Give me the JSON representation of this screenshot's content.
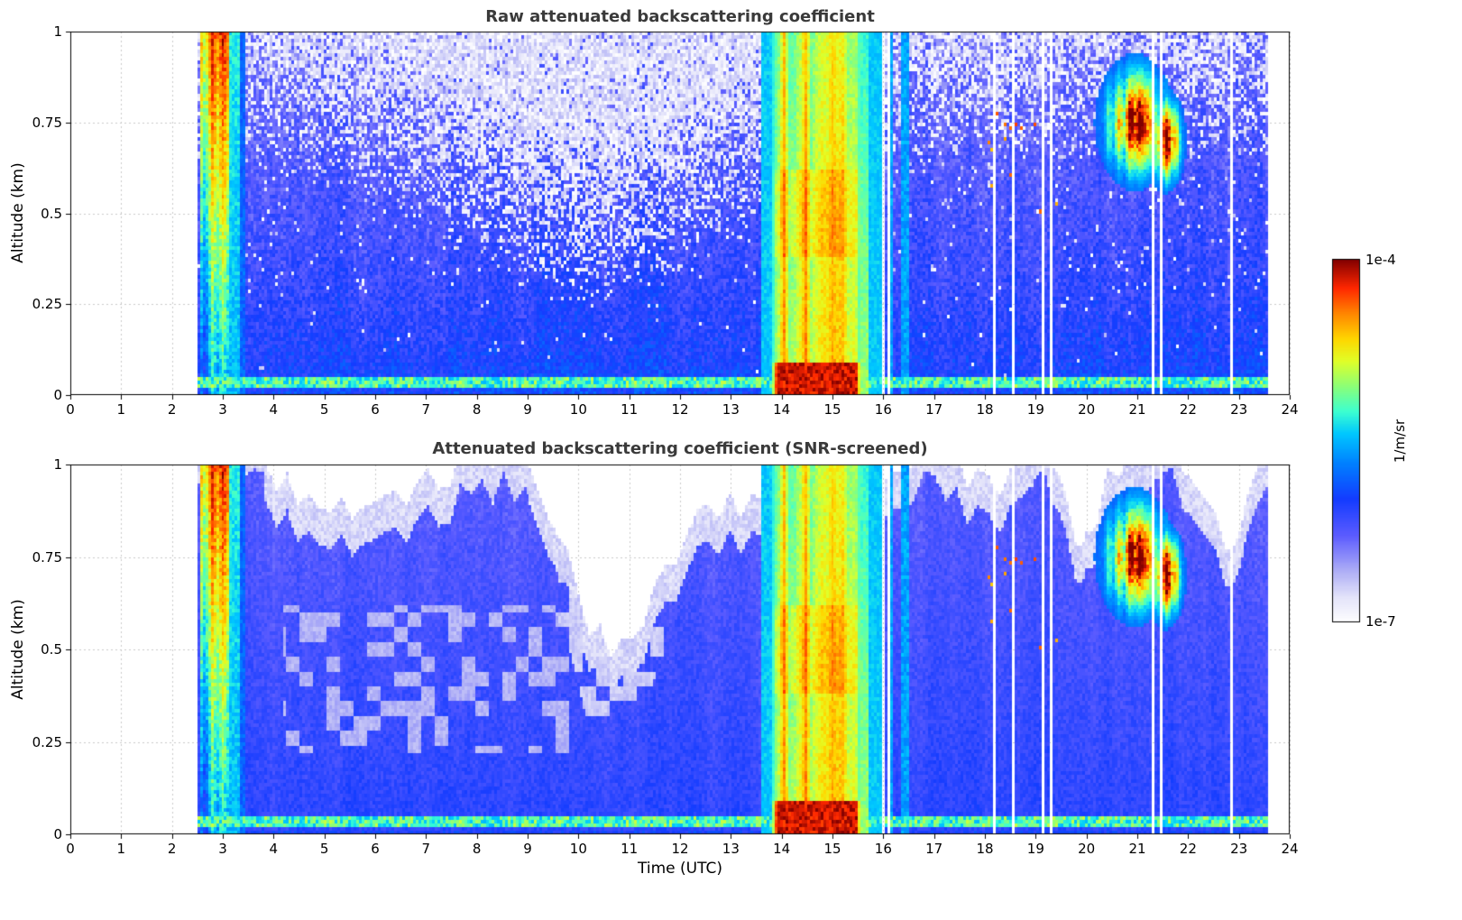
{
  "figure": {
    "background_color": "#ffffff",
    "title_color": "#3a3a3a",
    "grid_color": "#c9c9c9"
  },
  "chart_data": {
    "type": "heatmap",
    "panels": [
      {
        "title": "Raw attenuated backscattering coefficient",
        "screened": false
      },
      {
        "title": "Attenuated backscattering coefficient (SNR-screened)",
        "screened": true
      }
    ],
    "xlabel": "Time (UTC)",
    "ylabel": "Altitude (km)",
    "xlim": [
      0,
      24
    ],
    "ylim": [
      0,
      1
    ],
    "x_ticks": [
      0,
      1,
      2,
      3,
      4,
      5,
      6,
      7,
      8,
      9,
      10,
      11,
      12,
      13,
      14,
      15,
      16,
      17,
      18,
      19,
      20,
      21,
      22,
      23,
      24
    ],
    "x_tick_labels": [
      "0",
      "1",
      "2",
      "3",
      "4",
      "5",
      "6",
      "7",
      "8",
      "9",
      "10",
      "11",
      "12",
      "13",
      "14",
      "15",
      "16",
      "17",
      "18",
      "19",
      "20",
      "21",
      "22",
      "23",
      "24"
    ],
    "y_ticks": [
      0,
      0.25,
      0.5,
      0.75,
      1
    ],
    "y_tick_labels": [
      "0",
      "0.25",
      "0.5",
      "0.75",
      "1"
    ],
    "grid": true,
    "grid_style": "dotted",
    "colorbar": {
      "label": "1/m/sr",
      "top_label": "1e-4",
      "bottom_label": "1e-7",
      "scale": "log10",
      "vmin": 1e-07,
      "vmax": 0.0001
    },
    "colormap_stops": [
      [
        0.0,
        255,
        255,
        255
      ],
      [
        0.07,
        228,
        228,
        250
      ],
      [
        0.14,
        176,
        176,
        246
      ],
      [
        0.24,
        92,
        92,
        255
      ],
      [
        0.34,
        20,
        60,
        255
      ],
      [
        0.44,
        0,
        130,
        255
      ],
      [
        0.52,
        0,
        200,
        255
      ],
      [
        0.58,
        60,
        255,
        210
      ],
      [
        0.65,
        140,
        255,
        120
      ],
      [
        0.72,
        225,
        255,
        40
      ],
      [
        0.78,
        255,
        215,
        0
      ],
      [
        0.85,
        255,
        135,
        0
      ],
      [
        0.92,
        255,
        40,
        0
      ],
      [
        1.0,
        128,
        0,
        0
      ]
    ],
    "data_extent": {
      "t_start": 2.5,
      "t_end": 23.6
    },
    "features": {
      "surface_layer": {
        "alt_km": 0.04,
        "note": "persistent cyan-green near-surface return across whole record"
      },
      "morning_cloud": {
        "t_start": 2.55,
        "t_end": 3.45,
        "t_core_end": 3.12,
        "note": "deep full-column event, red/dark-red aloft, cyan-green trailing column"
      },
      "cyan_column_pre": {
        "t_start": 13.58,
        "t_end": 13.8
      },
      "precipitation": {
        "t_start": 13.8,
        "t_end": 15.58,
        "note": "intense yellow-orange full column, dark red near surface and 0.4-0.6 km"
      },
      "yellow_column_post": {
        "t_start": 15.58,
        "t_end": 15.74
      },
      "cyan_column_post": {
        "t_start": 15.74,
        "t_end": 16.0
      },
      "evening_cloud": {
        "t_start": 20.1,
        "t_end": 22.25,
        "t_center": 20.95,
        "t_center2": 21.55,
        "z_center_km": 0.75,
        "z_center2_km": 0.7,
        "note": "broken cloud layer 0.55-0.95 km with orange-red cores"
      },
      "missing_profiles_utc": [
        16.02,
        16.1,
        18.17,
        18.57,
        19.12,
        19.3,
        19.65,
        21.3,
        21.47,
        22.87
      ],
      "snr_screen": {
        "deepest_notch_utc": 10.55,
        "notch_min_alt_km": 0.5,
        "note": "white = screened-out low-SNR region in bottom panel; pale lavender = marginal SNR"
      }
    },
    "noise_seed": 42
  }
}
